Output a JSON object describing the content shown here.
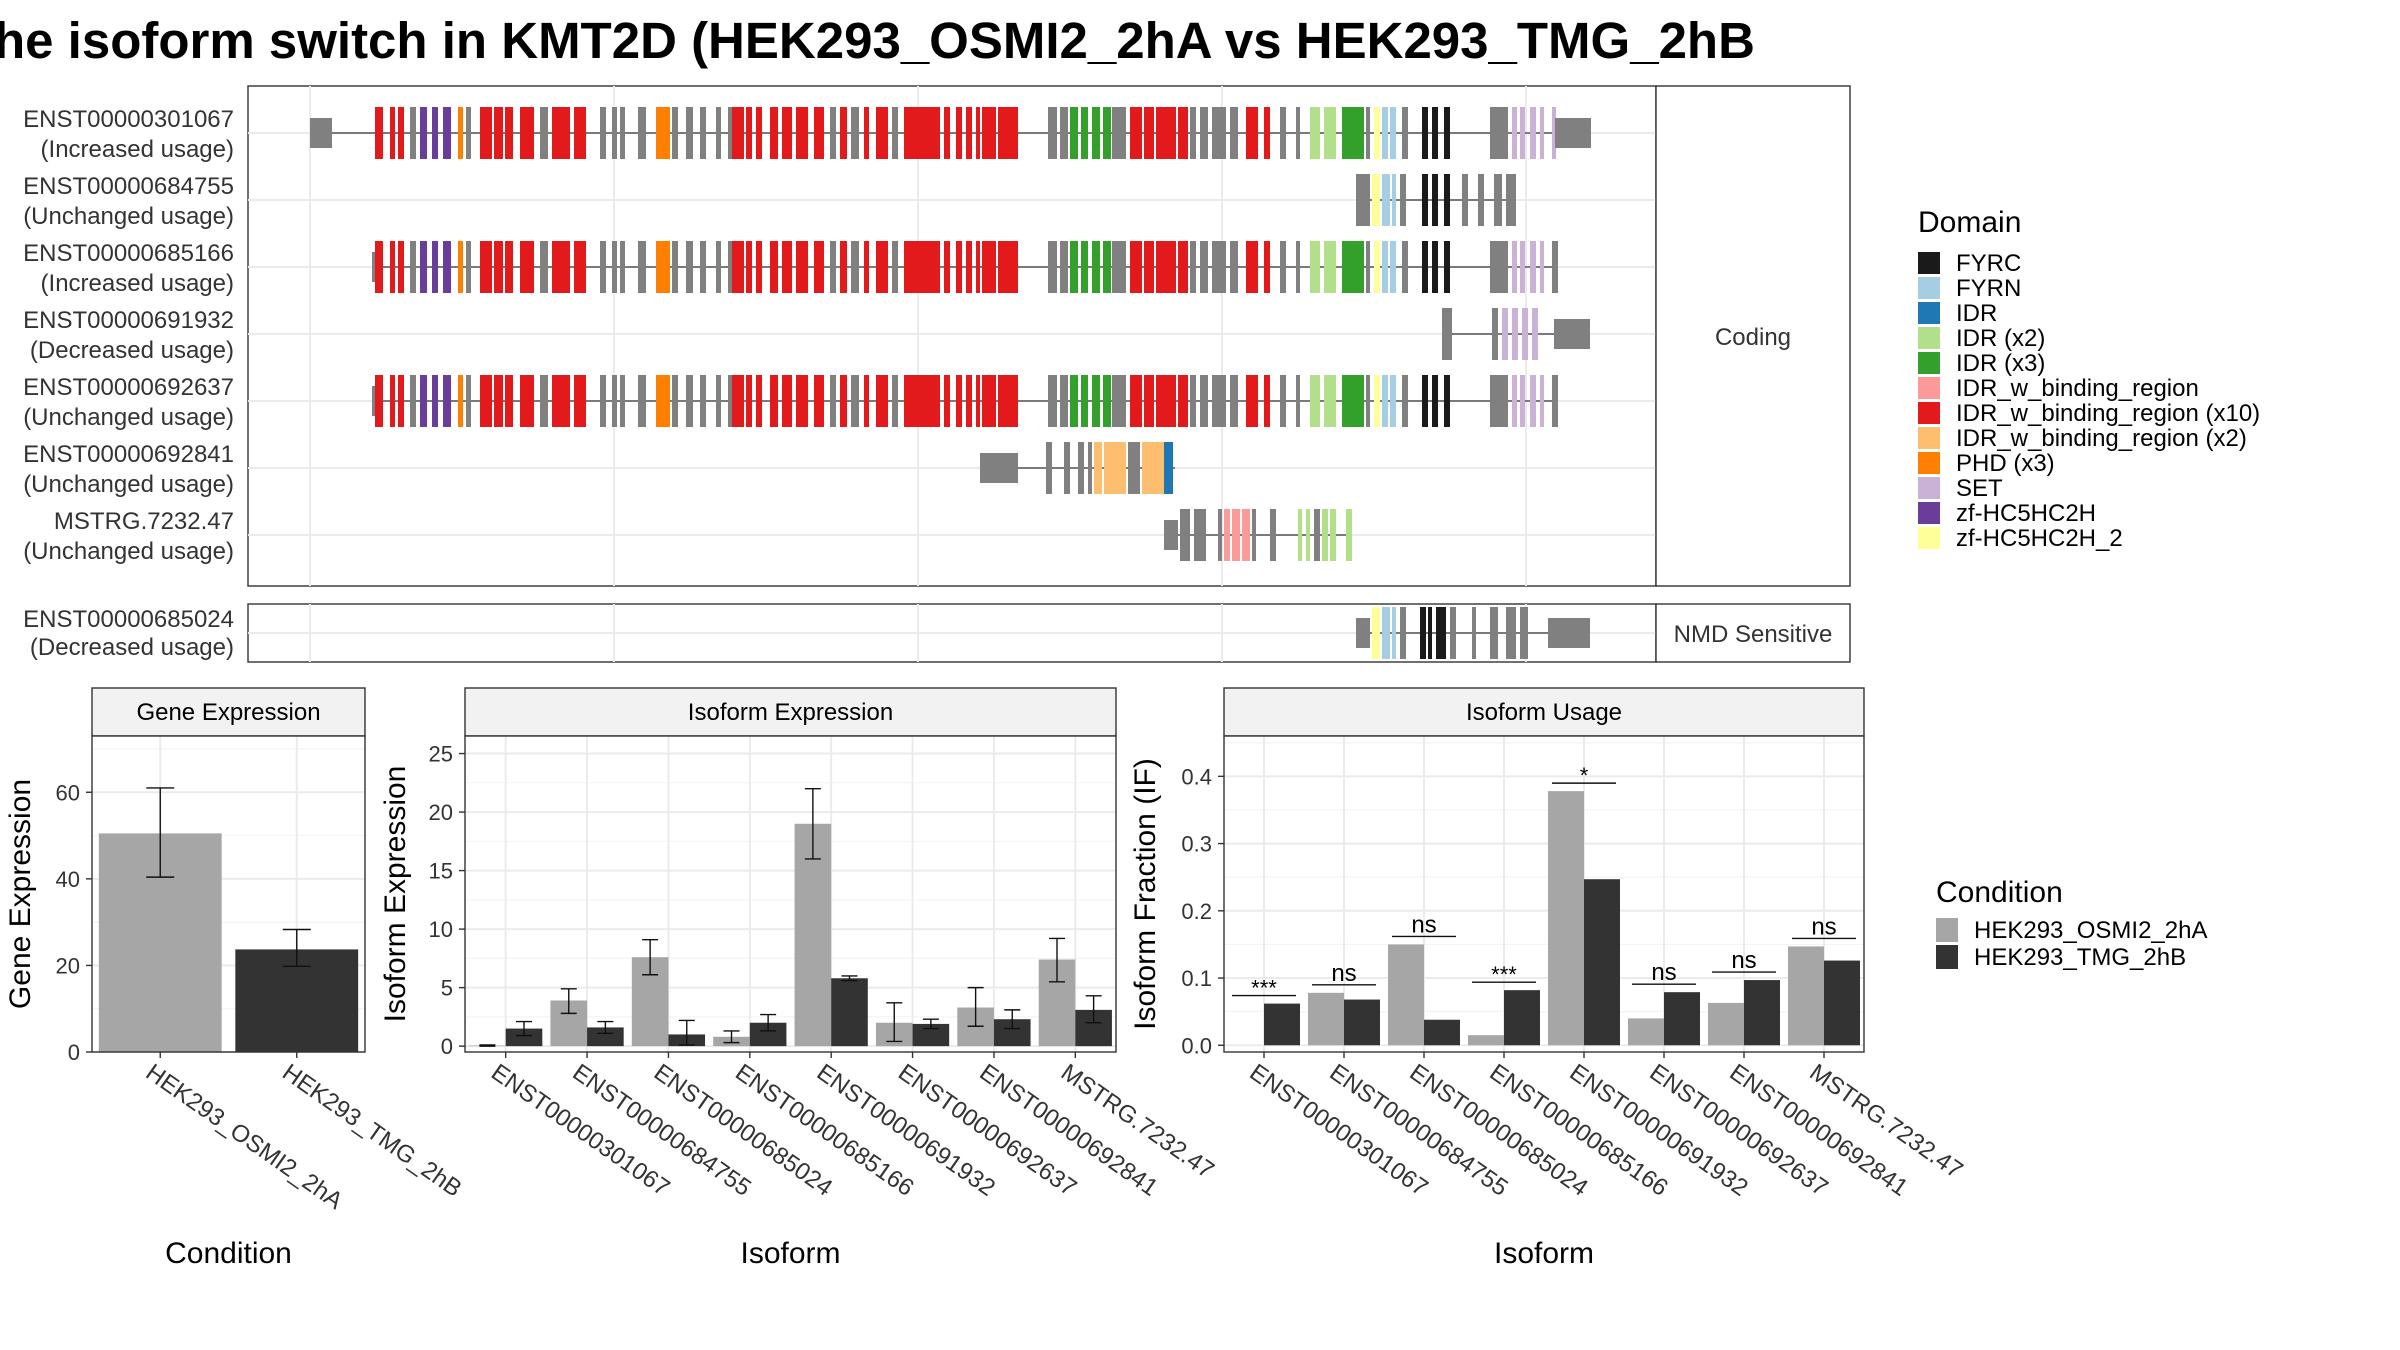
{
  "title": "he isoform switch in KMT2D (HEK293_OSMI2_2hA vs HEK293_TMG_2hB",
  "chart_data": [
    {
      "type": "transcript-structure",
      "panels": [
        {
          "label": "Coding",
          "transcripts": [
            {
              "id": "ENST00000301067",
              "usage": "(Increased usage)"
            },
            {
              "id": "ENST00000684755",
              "usage": "(Unchanged usage)"
            },
            {
              "id": "ENST00000685166",
              "usage": "(Increased usage)"
            },
            {
              "id": "ENST00000691932",
              "usage": "(Decreased usage)"
            },
            {
              "id": "ENST00000692637",
              "usage": "(Unchanged usage)"
            },
            {
              "id": "ENST00000692841",
              "usage": "(Unchanged usage)"
            },
            {
              "id": "MSTRG.7232.47",
              "usage": "(Unchanged usage)"
            }
          ]
        },
        {
          "label": "NMD Sensitive",
          "transcripts": [
            {
              "id": "ENST00000685024",
              "usage": "(Decreased usage)"
            }
          ]
        }
      ],
      "legend": {
        "title": "Domain",
        "entries": [
          {
            "label": "FYRC",
            "color": "#1a1a1a"
          },
          {
            "label": "FYRN",
            "color": "#a6cee3"
          },
          {
            "label": "IDR",
            "color": "#1f78b4"
          },
          {
            "label": "IDR (x2)",
            "color": "#b2df8a"
          },
          {
            "label": "IDR (x3)",
            "color": "#33a02c"
          },
          {
            "label": "IDR_w_binding_region",
            "color": "#fb9a99"
          },
          {
            "label": "IDR_w_binding_region (x10)",
            "color": "#e31a1c"
          },
          {
            "label": "IDR_w_binding_region (x2)",
            "color": "#fdbf6f"
          },
          {
            "label": "PHD (x3)",
            "color": "#ff7f00"
          },
          {
            "label": "SET",
            "color": "#cab2d6"
          },
          {
            "label": "zf-HC5HC2H",
            "color": "#6a3d9a"
          },
          {
            "label": "zf-HC5HC2H_2",
            "color": "#ffff99"
          }
        ]
      }
    },
    {
      "type": "bar",
      "title": "Gene Expression",
      "xlabel": "Condition",
      "ylabel": "Gene Expression",
      "ylim": [
        0,
        73
      ],
      "yticks": [
        0,
        20,
        40,
        60
      ],
      "categories": [
        "HEK293_OSMI2_2hA",
        "HEK293_TMG_2hB"
      ],
      "values": [
        50.5,
        23.7
      ],
      "errors": [
        [
          40.4,
          61.0
        ],
        [
          19.8,
          28.3
        ]
      ],
      "colors": [
        "#a6a6a6",
        "#333333"
      ]
    },
    {
      "type": "bar",
      "title": "Isoform Expression",
      "xlabel": "Isoform",
      "ylabel": "Isoform Expression",
      "ylim": [
        -0.5,
        26.5
      ],
      "yticks": [
        0,
        5,
        10,
        15,
        20,
        25
      ],
      "categories": [
        "ENST00000301067",
        "ENST00000684755",
        "ENST00000685024",
        "ENST00000685166",
        "ENST00000691932",
        "ENST00000692637",
        "ENST00000692841",
        "MSTRG.7232.47"
      ],
      "series": [
        {
          "name": "HEK293_OSMI2_2hA",
          "values": [
            0.05,
            3.9,
            7.6,
            0.8,
            19.0,
            2.0,
            3.3,
            7.4
          ],
          "errors": [
            [
              0,
              0.1
            ],
            [
              2.8,
              4.9
            ],
            [
              6.1,
              9.1
            ],
            [
              0.3,
              1.3
            ],
            [
              16.0,
              22.0
            ],
            [
              0.4,
              3.7
            ],
            [
              1.7,
              5.0
            ],
            [
              5.5,
              9.2
            ]
          ]
        },
        {
          "name": "HEK293_TMG_2hB",
          "values": [
            1.5,
            1.6,
            1.0,
            2.0,
            5.8,
            1.9,
            2.3,
            3.1
          ],
          "errors": [
            [
              0.9,
              2.1
            ],
            [
              1.1,
              2.1
            ],
            [
              0.1,
              2.2
            ],
            [
              1.3,
              2.7
            ],
            [
              5.6,
              6.0
            ],
            [
              1.5,
              2.3
            ],
            [
              1.5,
              3.1
            ],
            [
              2.0,
              4.3
            ]
          ]
        }
      ]
    },
    {
      "type": "bar",
      "title": "Isoform Usage",
      "xlabel": "Isoform",
      "ylabel": "Isoform Fraction (IF)",
      "ylim": [
        -0.01,
        0.46
      ],
      "yticks": [
        0.0,
        0.1,
        0.2,
        0.3,
        0.4
      ],
      "ytick_labels": [
        "0.0",
        "0.1",
        "0.2",
        "0.3",
        "0.4"
      ],
      "categories": [
        "ENST00000301067",
        "ENST00000684755",
        "ENST00000685024",
        "ENST00000685166",
        "ENST00000691932",
        "ENST00000692637",
        "ENST00000692841",
        "MSTRG.7232.47"
      ],
      "series": [
        {
          "name": "HEK293_OSMI2_2hA",
          "values": [
            0.0,
            0.078,
            0.15,
            0.015,
            0.378,
            0.04,
            0.063,
            0.147
          ]
        },
        {
          "name": "HEK293_TMG_2hB",
          "values": [
            0.062,
            0.068,
            0.038,
            0.082,
            0.247,
            0.079,
            0.097,
            0.126
          ]
        }
      ],
      "significance": [
        "***",
        "ns",
        "ns",
        "***",
        "*",
        "ns",
        "ns",
        "ns"
      ]
    }
  ],
  "condition_legend": {
    "title": "Condition",
    "entries": [
      {
        "label": "HEK293_OSMI2_2hA",
        "color": "#a6a6a6"
      },
      {
        "label": "HEK293_TMG_2hB",
        "color": "#333333"
      }
    ]
  }
}
